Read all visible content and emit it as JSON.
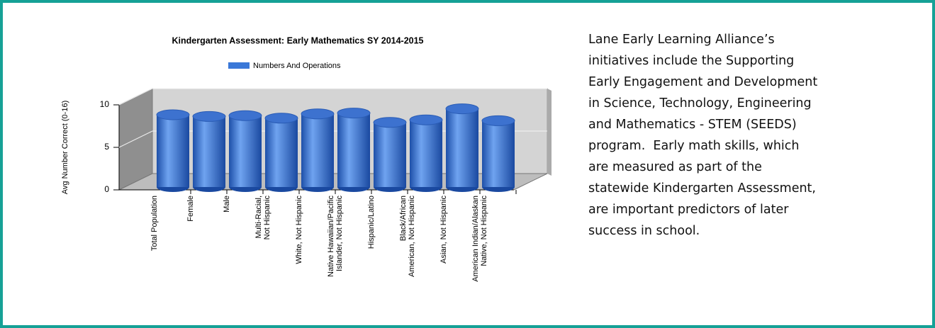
{
  "chart_data": {
    "type": "bar3d",
    "title": "Kindergarten Assessment: Early Mathematics SY 2014-2015",
    "y_label": "Avg Number Correct (0-16)",
    "categories": [
      "Total Population",
      "Female",
      "Male",
      "Multi-Racial,\nNot Hispanic",
      "White, Not Hispanic",
      "Native Hawaiian/Pacific\nIslander, Not Hispanic",
      "Hispanic/Latino",
      "Black/African\nAmerican, Not Hispanic",
      "Asian, Not Hispanic",
      "American Indian/Alaskan\nNative, Not Hispanic"
    ],
    "series": [
      {
        "name": "Numbers And Operations",
        "color": "#3a78d8",
        "values": [
          8.5,
          8.3,
          8.4,
          8.1,
          8.6,
          8.7,
          7.6,
          7.9,
          9.2,
          7.8
        ]
      }
    ],
    "ylim": [
      0,
      10
    ],
    "yticks": [
      0,
      5,
      10
    ],
    "grid": true,
    "legend": "top"
  },
  "text": {
    "lines": [
      "Lane Early Learning Alliance’s",
      "initiatives include the Supporting",
      "Early Engagement and Development",
      "in Science, Technology, Engineering",
      "and Mathematics - STEM (SEEDS)",
      "program.  Early math skills, which",
      "are measured as part of the",
      "statewide Kindergarten Assessment,",
      "are important predictors of later",
      "success in school."
    ]
  }
}
